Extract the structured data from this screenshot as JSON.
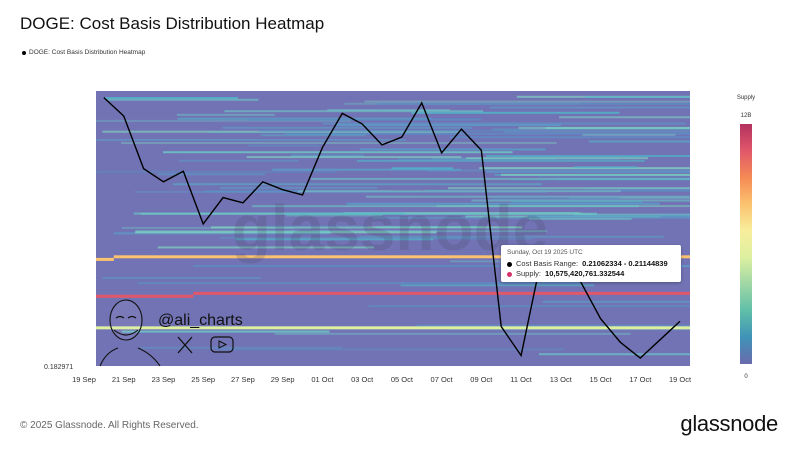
{
  "title": "DOGE: Cost Basis Distribution Heatmap",
  "legend_label": "DOGE: Cost Basis Distribution Heatmap",
  "watermark": "glassnode",
  "author_handle": "@ali_charts",
  "icons": [
    "x-logo-icon",
    "youtube-icon",
    "author-avatar"
  ],
  "tooltip": {
    "date": "Sunday, Oct 19 2025 UTC",
    "cost_basis_label": "Cost Basis Range:",
    "cost_basis_value": "0.21062334 - 0.21144839",
    "supply_label": "Supply:",
    "supply_value": "10,575,420,761.332544",
    "cost_basis_color": "#000000",
    "supply_color": "#d6336c"
  },
  "footer": {
    "copyright": "© 2025 Glassnode. All Rights Reserved.",
    "logo": "glassnode"
  },
  "chart_data": {
    "type": "heatmap",
    "title": "DOGE: Cost Basis Distribution Heatmap",
    "y_min_label": "0.182971",
    "ylim": [
      0.183,
      0.2875
    ],
    "x_ticks": [
      "19 Sep",
      "21 Sep",
      "23 Sep",
      "25 Sep",
      "27 Sep",
      "29 Sep",
      "01 Oct",
      "03 Oct",
      "05 Oct",
      "07 Oct",
      "09 Oct",
      "11 Oct",
      "13 Oct",
      "15 Oct",
      "17 Oct",
      "19 Oct"
    ],
    "colorbar": {
      "title": "Supply",
      "max_label": "12B",
      "min_label": "0",
      "max": 12000000000,
      "min": 0,
      "colors": [
        "#b3325f",
        "#e0576a",
        "#f58a55",
        "#fbc26f",
        "#f7ee9c",
        "#dcf0a0",
        "#9fd7a5",
        "#5fbfa8",
        "#3f93b8",
        "#6a6aad"
      ]
    },
    "grid": false,
    "background_color": "#7273b4",
    "price_series": {
      "color": "#000000",
      "dates": [
        "20 Sep",
        "21 Sep",
        "22 Sep",
        "23 Sep",
        "24 Sep",
        "25 Sep",
        "26 Sep",
        "27 Sep",
        "28 Sep",
        "29 Sep",
        "30 Sep",
        "01 Oct",
        "02 Oct",
        "03 Oct",
        "04 Oct",
        "05 Oct",
        "06 Oct",
        "07 Oct",
        "08 Oct",
        "09 Oct",
        "10 Oct",
        "11 Oct",
        "12 Oct",
        "13 Oct",
        "14 Oct",
        "15 Oct",
        "16 Oct",
        "17 Oct",
        "18 Oct",
        "19 Oct"
      ],
      "values": [
        0.285,
        0.278,
        0.258,
        0.253,
        0.257,
        0.237,
        0.247,
        0.245,
        0.253,
        0.25,
        0.248,
        0.266,
        0.279,
        0.275,
        0.267,
        0.27,
        0.283,
        0.264,
        0.273,
        0.265,
        0.198,
        0.187,
        0.223,
        0.224,
        0.215,
        0.201,
        0.192,
        0.186,
        0.193,
        0.2
      ]
    },
    "highlight_bands": [
      {
        "price": 0.2235,
        "from": "19 Sep",
        "to": "20 Sep",
        "supply": 8000000000
      },
      {
        "price": 0.2245,
        "from": "21 Sep",
        "to": "19 Oct",
        "supply": 8000000000
      },
      {
        "price": 0.2095,
        "from": "19 Sep",
        "to": "24 Sep",
        "supply": 10500000000
      },
      {
        "price": 0.2106,
        "from": "25 Sep",
        "to": "19 Oct",
        "supply": 10575420761
      },
      {
        "price": 0.1975,
        "from": "19 Sep",
        "to": "19 Oct",
        "supply": 6000000000
      }
    ]
  }
}
